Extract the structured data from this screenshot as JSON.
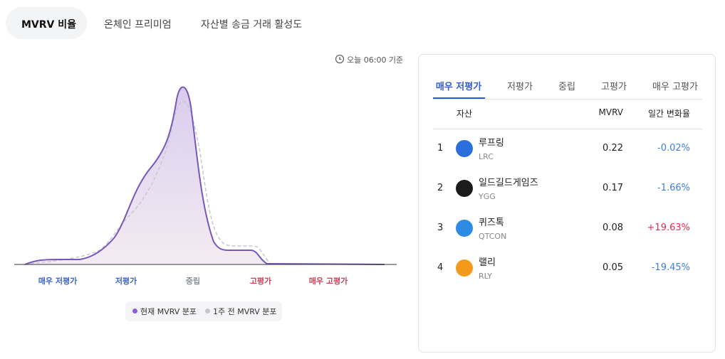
{
  "tabs": [
    "MVRV 비율",
    "온체인 프리미엄",
    "자산별 송금 거래 활성도"
  ],
  "timestamp": "오늘 06:00 기준",
  "chart": {
    "categories": [
      "매우 저평가",
      "저평가",
      "중립",
      "고평가",
      "매우 고평가"
    ],
    "category_colors": [
      "#3a63cf",
      "#3a63cf",
      "#8a8f98",
      "#d1405b",
      "#d1405b"
    ],
    "legend": [
      {
        "name": "현재 MVRV 분포",
        "color": "#8e5be0"
      },
      {
        "name": "1주 전 MVRV 분포",
        "color": "#c4c6cc"
      }
    ]
  },
  "panel": {
    "tabs": [
      "매우 저평가",
      "저평가",
      "중립",
      "고평가",
      "매우 고평가"
    ],
    "table": {
      "header": [
        "자산",
        "MVRV",
        "일간 변화율"
      ],
      "rows": [
        {
          "rank": 1,
          "name": "루프링",
          "ticker": "LRC",
          "mvrv": "0.22",
          "change": "-0.02%",
          "color": "#3d7fe0"
        },
        {
          "rank": 2,
          "name": "일드길드게임즈",
          "ticker": "YGG",
          "mvrv": "0.17",
          "change": "-1.66%",
          "color": "#3d7fe0"
        },
        {
          "rank": 3,
          "name": "퀴즈톡",
          "ticker": "QTCON",
          "mvrv": "0.08",
          "change": "+19.63%",
          "color": "#e0314b"
        },
        {
          "rank": 4,
          "name": "랠리",
          "ticker": "RLY",
          "mvrv": "0.05",
          "change": "-19.45%",
          "color": "#3d7fe0"
        }
      ]
    }
  }
}
